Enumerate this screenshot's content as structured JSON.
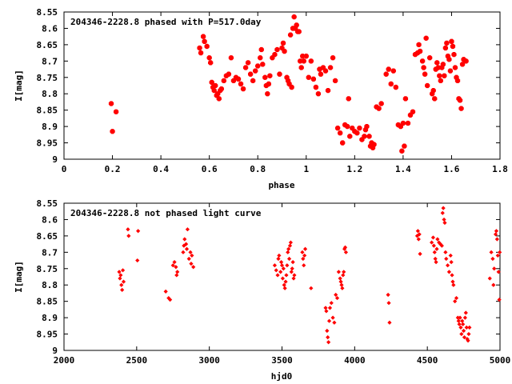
{
  "chart_data": [
    {
      "type": "scatter",
      "title": "204346-2228.8 phased with P=517.0day",
      "xlabel": "phase",
      "ylabel": "I[mag]",
      "xlim": [
        0,
        1.8
      ],
      "ylim": [
        8.55,
        9.0
      ],
      "y_inverted": true,
      "marker_color": "#ff0000",
      "marker": "filled-hexagon",
      "x_ticks": [
        "0",
        "0.2",
        "0.4",
        "0.6",
        "0.8",
        "1",
        "1.2",
        "1.4",
        "1.6",
        "1.8"
      ],
      "y_ticks": [
        "8.55",
        "8.6",
        "8.65",
        "8.7",
        "8.75",
        "8.8",
        "8.85",
        "8.9",
        "8.95",
        "9"
      ],
      "points": [
        [
          0.195,
          8.83
        ],
        [
          0.215,
          8.855
        ],
        [
          0.2,
          8.915
        ],
        [
          0.56,
          8.66
        ],
        [
          0.565,
          8.675
        ],
        [
          0.575,
          8.625
        ],
        [
          0.58,
          8.64
        ],
        [
          0.59,
          8.655
        ],
        [
          0.6,
          8.69
        ],
        [
          0.605,
          8.705
        ],
        [
          0.61,
          8.765
        ],
        [
          0.615,
          8.78
        ],
        [
          0.62,
          8.79
        ],
        [
          0.625,
          8.775
        ],
        [
          0.63,
          8.805
        ],
        [
          0.635,
          8.8
        ],
        [
          0.64,
          8.815
        ],
        [
          0.645,
          8.79
        ],
        [
          0.65,
          8.785
        ],
        [
          0.66,
          8.76
        ],
        [
          0.67,
          8.745
        ],
        [
          0.68,
          8.74
        ],
        [
          0.69,
          8.69
        ],
        [
          0.7,
          8.76
        ],
        [
          0.71,
          8.75
        ],
        [
          0.72,
          8.755
        ],
        [
          0.73,
          8.77
        ],
        [
          0.74,
          8.785
        ],
        [
          0.75,
          8.72
        ],
        [
          0.76,
          8.705
        ],
        [
          0.77,
          8.74
        ],
        [
          0.78,
          8.76
        ],
        [
          0.79,
          8.73
        ],
        [
          0.8,
          8.715
        ],
        [
          0.81,
          8.69
        ],
        [
          0.815,
          8.665
        ],
        [
          0.82,
          8.71
        ],
        [
          0.83,
          8.75
        ],
        [
          0.835,
          8.775
        ],
        [
          0.84,
          8.8
        ],
        [
          0.845,
          8.77
        ],
        [
          0.85,
          8.745
        ],
        [
          0.86,
          8.69
        ],
        [
          0.87,
          8.68
        ],
        [
          0.88,
          8.665
        ],
        [
          0.89,
          8.74
        ],
        [
          0.9,
          8.66
        ],
        [
          0.905,
          8.645
        ],
        [
          0.91,
          8.67
        ],
        [
          0.92,
          8.75
        ],
        [
          0.925,
          8.76
        ],
        [
          0.93,
          8.77
        ],
        [
          0.935,
          8.62
        ],
        [
          0.94,
          8.78
        ],
        [
          0.945,
          8.6
        ],
        [
          0.95,
          8.565
        ],
        [
          0.955,
          8.6
        ],
        [
          0.96,
          8.59
        ],
        [
          0.965,
          8.61
        ],
        [
          0.97,
          8.61
        ],
        [
          0.975,
          8.7
        ],
        [
          0.98,
          8.72
        ],
        [
          0.985,
          8.685
        ],
        [
          0.99,
          8.7
        ],
        [
          1.0,
          8.685
        ],
        [
          1.01,
          8.75
        ],
        [
          1.02,
          8.7
        ],
        [
          1.03,
          8.755
        ],
        [
          1.04,
          8.78
        ],
        [
          1.05,
          8.8
        ],
        [
          1.055,
          8.725
        ],
        [
          1.06,
          8.74
        ],
        [
          1.07,
          8.72
        ],
        [
          1.08,
          8.73
        ],
        [
          1.09,
          8.79
        ],
        [
          1.1,
          8.72
        ],
        [
          1.11,
          8.69
        ],
        [
          1.12,
          8.76
        ],
        [
          1.13,
          8.905
        ],
        [
          1.14,
          8.92
        ],
        [
          1.15,
          8.95
        ],
        [
          1.16,
          8.895
        ],
        [
          1.17,
          8.9
        ],
        [
          1.175,
          8.815
        ],
        [
          1.18,
          8.93
        ],
        [
          1.19,
          8.905
        ],
        [
          1.2,
          8.915
        ],
        [
          1.21,
          8.92
        ],
        [
          1.22,
          8.905
        ],
        [
          1.23,
          8.94
        ],
        [
          1.24,
          8.93
        ],
        [
          1.245,
          8.91
        ],
        [
          1.25,
          8.9
        ],
        [
          1.26,
          8.93
        ],
        [
          1.265,
          8.96
        ],
        [
          1.27,
          8.95
        ],
        [
          1.275,
          8.965
        ],
        [
          1.28,
          8.955
        ],
        [
          1.29,
          8.84
        ],
        [
          1.3,
          8.845
        ],
        [
          1.31,
          8.83
        ],
        [
          1.33,
          8.74
        ],
        [
          1.34,
          8.725
        ],
        [
          1.35,
          8.77
        ],
        [
          1.36,
          8.73
        ],
        [
          1.37,
          8.78
        ],
        [
          1.38,
          8.895
        ],
        [
          1.39,
          8.9
        ],
        [
          1.395,
          8.975
        ],
        [
          1.4,
          8.89
        ],
        [
          1.405,
          8.96
        ],
        [
          1.41,
          8.815
        ],
        [
          1.42,
          8.89
        ],
        [
          1.43,
          8.865
        ],
        [
          1.44,
          8.855
        ],
        [
          1.45,
          8.68
        ],
        [
          1.46,
          8.675
        ],
        [
          1.465,
          8.65
        ],
        [
          1.47,
          8.67
        ],
        [
          1.48,
          8.7
        ],
        [
          1.485,
          8.72
        ],
        [
          1.49,
          8.74
        ],
        [
          1.495,
          8.63
        ],
        [
          1.5,
          8.775
        ],
        [
          1.51,
          8.69
        ],
        [
          1.52,
          8.8
        ],
        [
          1.525,
          8.79
        ],
        [
          1.53,
          8.815
        ],
        [
          1.535,
          8.725
        ],
        [
          1.54,
          8.705
        ],
        [
          1.545,
          8.72
        ],
        [
          1.55,
          8.745
        ],
        [
          1.555,
          8.76
        ],
        [
          1.56,
          8.72
        ],
        [
          1.565,
          8.71
        ],
        [
          1.57,
          8.745
        ],
        [
          1.575,
          8.66
        ],
        [
          1.58,
          8.645
        ],
        [
          1.585,
          8.685
        ],
        [
          1.59,
          8.695
        ],
        [
          1.595,
          8.73
        ],
        [
          1.6,
          8.64
        ],
        [
          1.605,
          8.655
        ],
        [
          1.61,
          8.68
        ],
        [
          1.615,
          8.72
        ],
        [
          1.62,
          8.75
        ],
        [
          1.625,
          8.76
        ],
        [
          1.63,
          8.815
        ],
        [
          1.635,
          8.82
        ],
        [
          1.64,
          8.845
        ],
        [
          1.645,
          8.71
        ],
        [
          1.65,
          8.695
        ],
        [
          1.66,
          8.7
        ]
      ]
    },
    {
      "type": "scatter",
      "title": "204346-2228.8 not phased light curve",
      "xlabel": "hjd0",
      "ylabel": "I[mag]",
      "xlim": [
        2000,
        5000
      ],
      "ylim": [
        8.55,
        9.0
      ],
      "y_inverted": true,
      "marker_color": "#ff0000",
      "marker": "filled-diamond",
      "x_ticks": [
        "2000",
        "2500",
        "3000",
        "3500",
        "4000",
        "4500",
        "5000"
      ],
      "y_ticks": [
        "8.55",
        "8.6",
        "8.65",
        "8.7",
        "8.75",
        "8.8",
        "8.85",
        "8.9",
        "8.95",
        "9"
      ],
      "points": [
        [
          2380,
          8.76
        ],
        [
          2385,
          8.78
        ],
        [
          2390,
          8.77
        ],
        [
          2395,
          8.8
        ],
        [
          2400,
          8.815
        ],
        [
          2405,
          8.755
        ],
        [
          2410,
          8.79
        ],
        [
          2440,
          8.63
        ],
        [
          2445,
          8.65
        ],
        [
          2510,
          8.635
        ],
        [
          2505,
          8.725
        ],
        [
          2700,
          8.82
        ],
        [
          2720,
          8.84
        ],
        [
          2730,
          8.845
        ],
        [
          2750,
          8.74
        ],
        [
          2760,
          8.73
        ],
        [
          2770,
          8.745
        ],
        [
          2775,
          8.77
        ],
        [
          2780,
          8.76
        ],
        [
          2820,
          8.7
        ],
        [
          2825,
          8.68
        ],
        [
          2830,
          8.66
        ],
        [
          2840,
          8.675
        ],
        [
          2845,
          8.69
        ],
        [
          2850,
          8.63
        ],
        [
          2860,
          8.72
        ],
        [
          2870,
          8.7
        ],
        [
          2875,
          8.735
        ],
        [
          2880,
          8.71
        ],
        [
          2890,
          8.745
        ],
        [
          3450,
          8.74
        ],
        [
          3460,
          8.755
        ],
        [
          3470,
          8.77
        ],
        [
          3475,
          8.72
        ],
        [
          3480,
          8.71
        ],
        [
          3490,
          8.76
        ],
        [
          3495,
          8.73
        ],
        [
          3500,
          8.74
        ],
        [
          3505,
          8.78
        ],
        [
          3510,
          8.75
        ],
        [
          3515,
          8.8
        ],
        [
          3520,
          8.81
        ],
        [
          3525,
          8.79
        ],
        [
          3530,
          8.77
        ],
        [
          3535,
          8.74
        ],
        [
          3540,
          8.7
        ],
        [
          3545,
          8.69
        ],
        [
          3550,
          8.72
        ],
        [
          3555,
          8.68
        ],
        [
          3560,
          8.67
        ],
        [
          3565,
          8.76
        ],
        [
          3570,
          8.75
        ],
        [
          3575,
          8.73
        ],
        [
          3580,
          8.78
        ],
        [
          3585,
          8.77
        ],
        [
          3640,
          8.7
        ],
        [
          3645,
          8.72
        ],
        [
          3650,
          8.74
        ],
        [
          3655,
          8.71
        ],
        [
          3660,
          8.69
        ],
        [
          3700,
          8.81
        ],
        [
          3800,
          8.87
        ],
        [
          3805,
          8.88
        ],
        [
          3810,
          8.94
        ],
        [
          3815,
          8.96
        ],
        [
          3820,
          8.975
        ],
        [
          3825,
          8.91
        ],
        [
          3830,
          8.87
        ],
        [
          3840,
          8.855
        ],
        [
          3850,
          8.9
        ],
        [
          3860,
          8.915
        ],
        [
          3870,
          8.83
        ],
        [
          3880,
          8.84
        ],
        [
          3890,
          8.76
        ],
        [
          3900,
          8.78
        ],
        [
          3905,
          8.79
        ],
        [
          3910,
          8.8
        ],
        [
          3915,
          8.81
        ],
        [
          3920,
          8.77
        ],
        [
          3925,
          8.76
        ],
        [
          3930,
          8.69
        ],
        [
          3935,
          8.685
        ],
        [
          3940,
          8.7
        ],
        [
          4230,
          8.83
        ],
        [
          4235,
          8.855
        ],
        [
          4240,
          8.915
        ],
        [
          4430,
          8.65
        ],
        [
          4435,
          8.635
        ],
        [
          4440,
          8.66
        ],
        [
          4445,
          8.645
        ],
        [
          4450,
          8.705
        ],
        [
          4530,
          8.67
        ],
        [
          4540,
          8.655
        ],
        [
          4545,
          8.68
        ],
        [
          4550,
          8.7
        ],
        [
          4555,
          8.72
        ],
        [
          4560,
          8.73
        ],
        [
          4565,
          8.69
        ],
        [
          4570,
          8.66
        ],
        [
          4580,
          8.67
        ],
        [
          4590,
          8.675
        ],
        [
          4600,
          8.68
        ],
        [
          4605,
          8.58
        ],
        [
          4610,
          8.565
        ],
        [
          4615,
          8.6
        ],
        [
          4620,
          8.61
        ],
        [
          4625,
          8.7
        ],
        [
          4630,
          8.72
        ],
        [
          4640,
          8.74
        ],
        [
          4650,
          8.76
        ],
        [
          4660,
          8.71
        ],
        [
          4665,
          8.73
        ],
        [
          4670,
          8.77
        ],
        [
          4675,
          8.79
        ],
        [
          4680,
          8.8
        ],
        [
          4690,
          8.85
        ],
        [
          4700,
          8.84
        ],
        [
          4710,
          8.9
        ],
        [
          4715,
          8.91
        ],
        [
          4720,
          8.92
        ],
        [
          4725,
          8.9
        ],
        [
          4730,
          8.93
        ],
        [
          4735,
          8.95
        ],
        [
          4740,
          8.91
        ],
        [
          4745,
          8.92
        ],
        [
          4750,
          8.94
        ],
        [
          4755,
          8.96
        ],
        [
          4760,
          8.9
        ],
        [
          4765,
          8.885
        ],
        [
          4770,
          8.93
        ],
        [
          4775,
          8.965
        ],
        [
          4780,
          8.97
        ],
        [
          4785,
          8.95
        ],
        [
          4790,
          8.93
        ],
        [
          4930,
          8.78
        ],
        [
          4940,
          8.7
        ],
        [
          4950,
          8.72
        ],
        [
          4955,
          8.8
        ],
        [
          4960,
          8.75
        ],
        [
          4970,
          8.645
        ],
        [
          4975,
          8.635
        ],
        [
          4980,
          8.66
        ],
        [
          4985,
          8.71
        ],
        [
          4990,
          8.76
        ],
        [
          4995,
          8.845
        ],
        [
          4998,
          8.7
        ]
      ]
    }
  ]
}
